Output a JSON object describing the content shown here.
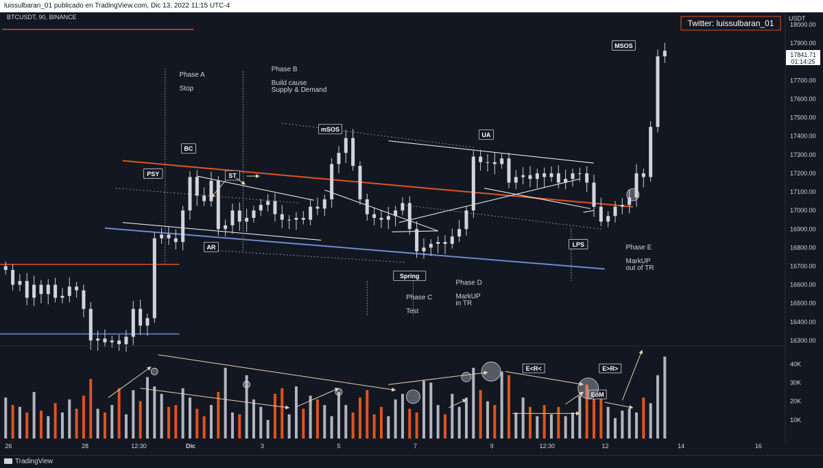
{
  "header": {
    "caption": "luissulbaran_01 publicado en TradingView.com, Dic 13, 2022 11:15 UTC-4",
    "symbol": "BTCUSDT, 90, BINANCE"
  },
  "footer": {
    "brand": "TradingView"
  },
  "watermark": "Twitter: luissulbaran_01",
  "colors": {
    "background": "#131722",
    "candle": "#d1d4dc",
    "volume_up": "#b2b5be",
    "volume_down": "#e0531e",
    "resistance": "#e0531e",
    "support": "#6f8ad0",
    "channel": "#ffffff"
  },
  "chart_data": {
    "type": "candlestick",
    "price_axis": {
      "unit": "USDT",
      "ticks": [
        "18000.00",
        "17900.00",
        "17800.00",
        "17700.00",
        "17600.00",
        "17500.00",
        "17400.00",
        "17300.00",
        "17200.00",
        "17100.00",
        "17000.00",
        "16900.00",
        "16800.00",
        "16700.00",
        "16600.00",
        "16500.00",
        "16400.00",
        "16300.00"
      ],
      "range": [
        16270,
        18030
      ]
    },
    "last_price": {
      "value": "17841.71",
      "countdown": "01:14:25"
    },
    "volume_axis": {
      "ticks": [
        "40K",
        "30K",
        "20K",
        "10K"
      ],
      "range": [
        0,
        46000
      ]
    },
    "time_axis": {
      "ticks": [
        {
          "label": "26",
          "t": 0.4
        },
        {
          "label": "28",
          "t": 11.2
        },
        {
          "label": "12:30",
          "t": 18.8
        },
        {
          "label": "Dic",
          "t": 26.1
        },
        {
          "label": "3",
          "t": 36.2
        },
        {
          "label": "5",
          "t": 47.0
        },
        {
          "label": "7",
          "t": 57.8
        },
        {
          "label": "9",
          "t": 68.6
        },
        {
          "label": "12:30",
          "t": 76.4
        },
        {
          "label": "12",
          "t": 84.6
        },
        {
          "label": "14",
          "t": 95.3
        },
        {
          "label": "16",
          "t": 106.2
        }
      ],
      "range": [
        -0.8,
        110
      ]
    },
    "price_path": [
      [
        0,
        16680
      ],
      [
        1,
        16600
      ],
      [
        2,
        16620
      ],
      [
        3,
        16530
      ],
      [
        4,
        16600
      ],
      [
        5,
        16550
      ],
      [
        6,
        16600
      ],
      [
        7,
        16530
      ],
      [
        8,
        16540
      ],
      [
        9,
        16590
      ],
      [
        10,
        16570
      ],
      [
        11,
        16470
      ],
      [
        12,
        16300
      ],
      [
        13,
        16310
      ],
      [
        14,
        16290
      ],
      [
        15,
        16300
      ],
      [
        16,
        16280
      ],
      [
        17,
        16320
      ],
      [
        18,
        16470
      ],
      [
        19,
        16380
      ],
      [
        20,
        16420
      ],
      [
        21,
        16850
      ],
      [
        22,
        16870
      ],
      [
        23,
        16850
      ],
      [
        24,
        16830
      ],
      [
        25,
        17000
      ],
      [
        26,
        17180
      ],
      [
        27,
        17080
      ],
      [
        28,
        17050
      ],
      [
        29,
        17160
      ],
      [
        30,
        16900
      ],
      [
        31,
        16920
      ],
      [
        32,
        17000
      ],
      [
        33,
        16940
      ],
      [
        34,
        16960
      ],
      [
        35,
        17000
      ],
      [
        36,
        17030
      ],
      [
        37,
        17050
      ],
      [
        38,
        16980
      ],
      [
        39,
        16950
      ],
      [
        40,
        16950
      ],
      [
        41,
        16960
      ],
      [
        42,
        16950
      ],
      [
        43,
        17020
      ],
      [
        44,
        17010
      ],
      [
        45,
        17060
      ],
      [
        46,
        17250
      ],
      [
        47,
        17310
      ],
      [
        48,
        17390
      ],
      [
        49,
        17240
      ],
      [
        50,
        17060
      ],
      [
        51,
        16980
      ],
      [
        52,
        16960
      ],
      [
        53,
        16950
      ],
      [
        54,
        16970
      ],
      [
        55,
        17000
      ],
      [
        56,
        17040
      ],
      [
        57,
        16900
      ],
      [
        58,
        16780
      ],
      [
        59,
        16800
      ],
      [
        60,
        16820
      ],
      [
        61,
        16830
      ],
      [
        62,
        16820
      ],
      [
        63,
        16860
      ],
      [
        64,
        16900
      ],
      [
        65,
        17000
      ],
      [
        66,
        17290
      ],
      [
        67,
        17260
      ],
      [
        68,
        17260
      ],
      [
        69,
        17250
      ],
      [
        70,
        17280
      ],
      [
        71,
        17150
      ],
      [
        72,
        17180
      ],
      [
        73,
        17190
      ],
      [
        74,
        17170
      ],
      [
        75,
        17200
      ],
      [
        76,
        17180
      ],
      [
        77,
        17200
      ],
      [
        78,
        17150
      ],
      [
        79,
        17170
      ],
      [
        80,
        17200
      ],
      [
        81,
        17200
      ],
      [
        82,
        17150
      ],
      [
        83,
        17020
      ],
      [
        84,
        16940
      ],
      [
        85,
        16970
      ],
      [
        86,
        17020
      ],
      [
        87,
        17030
      ],
      [
        88,
        17070
      ],
      [
        89,
        17200
      ],
      [
        90,
        17180
      ],
      [
        91,
        17450
      ],
      [
        92,
        17830
      ],
      [
        93,
        17860
      ]
    ],
    "volume": [
      22,
      18,
      17,
      14,
      25,
      15,
      12,
      19,
      14,
      21,
      16,
      23,
      32,
      16,
      14,
      18,
      27,
      13,
      26,
      20,
      33,
      28,
      24,
      17,
      18,
      27,
      22,
      16,
      12,
      18,
      25,
      38,
      14,
      13,
      34,
      21,
      17,
      10,
      24,
      27,
      13,
      28,
      16,
      23,
      21,
      18,
      12,
      25,
      18,
      14,
      22,
      26,
      13,
      17,
      12,
      21,
      24,
      16,
      14,
      31,
      30,
      18,
      13,
      24,
      17,
      22,
      38,
      26,
      20,
      18,
      36,
      34,
      14,
      22,
      17,
      12,
      18,
      13,
      17,
      12,
      14,
      23,
      29,
      26,
      22,
      17,
      11,
      15,
      16,
      14,
      22,
      19,
      34,
      44
    ],
    "levels": [
      {
        "name": "top-resistance",
        "price": 17975
      },
      {
        "name": "range-resistance",
        "price": 16710
      },
      {
        "name": "range-support",
        "price": 16335
      }
    ],
    "annotations": [
      {
        "label": "PSY",
        "t": 20.8,
        "p": 17195
      },
      {
        "label": "BC",
        "t": 25.8,
        "p": 17330
      },
      {
        "label": "ST",
        "t": 32.0,
        "p": 17185
      },
      {
        "label": "AR",
        "t": 29.0,
        "p": 16800
      },
      {
        "label": "mSOS",
        "t": 45.8,
        "p": 17435
      },
      {
        "label": "Spring",
        "t": 57.0,
        "p": 16645
      },
      {
        "label": "UA",
        "t": 67.8,
        "p": 17405
      },
      {
        "label": "LPS",
        "t": 80.8,
        "p": 16815
      },
      {
        "label": "MSOS",
        "t": 87.2,
        "p": 17885
      }
    ],
    "phases": [
      {
        "title": "Phase A",
        "subtitle": "Stop",
        "t": 24.5,
        "p": 17720
      },
      {
        "title": "Phase B",
        "subtitle": "Build cause",
        "subtitle2": "Supply & Demand",
        "t": 37.5,
        "p": 17750
      },
      {
        "title": "Phase C",
        "subtitle": "Test",
        "t": 56.5,
        "p": 16520
      },
      {
        "title": "Phase D",
        "subtitle": "MarkUP",
        "subtitle2": "in TR",
        "t": 63.5,
        "p": 16600
      },
      {
        "title": "Phase E",
        "subtitle": "MarkUP",
        "subtitle2": "out of TR",
        "t": 87.5,
        "p": 16790
      }
    ],
    "volume_labels": [
      {
        "label": "E<R<",
        "t": 74.5,
        "v": 37500
      },
      {
        "label": "EoM",
        "t": 83.5,
        "v": 23500
      },
      {
        "label": "E>R>",
        "t": 85.3,
        "v": 37500
      }
    ]
  }
}
